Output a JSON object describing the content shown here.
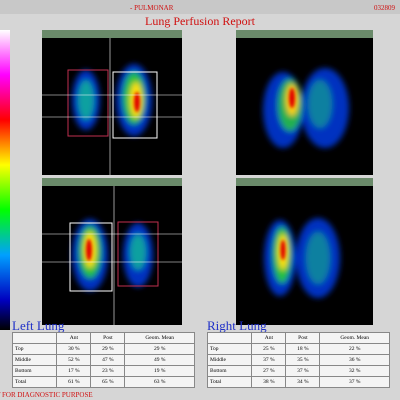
{
  "header": {
    "department": "- PULMONAR",
    "id": "032809",
    "title": "Lung Perfusion Report"
  },
  "left": {
    "label": "Left Lung",
    "table": {
      "columns": [
        "Ant",
        "Post",
        "Geom. Mean"
      ],
      "rows": [
        [
          "Top",
          "30 %",
          "29 %",
          "29 %"
        ],
        [
          "Middle",
          "52 %",
          "47 %",
          "49 %"
        ],
        [
          "Bottom",
          "17 %",
          "23 %",
          "19 %"
        ],
        [
          "Total",
          "61 %",
          "65 %",
          "63 %"
        ]
      ]
    }
  },
  "right": {
    "label": "Right Lung",
    "table": {
      "columns": [
        "Ant",
        "Post",
        "Geom. Mean"
      ],
      "rows": [
        [
          "Top",
          "25 %",
          "18 %",
          "22 %"
        ],
        [
          "Middle",
          "37 %",
          "35 %",
          "36 %"
        ],
        [
          "Bottom",
          "27 %",
          "37 %",
          "32 %"
        ],
        [
          "Total",
          "38 %",
          "34 %",
          "37 %"
        ]
      ]
    }
  },
  "footer": "NOT FOR DIAGNOSTIC PURPOSE"
}
